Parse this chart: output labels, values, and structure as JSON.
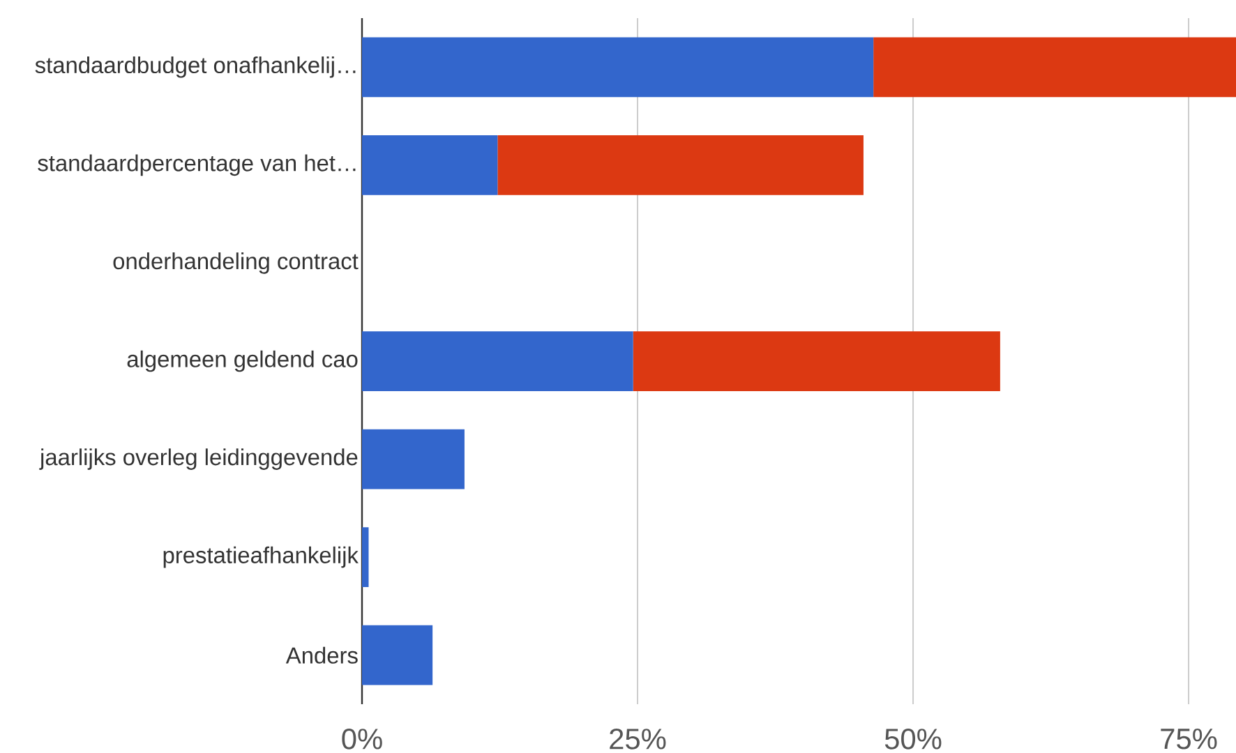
{
  "chart_data": {
    "type": "bar",
    "orientation": "horizontal",
    "stacked": true,
    "categories": [
      "standaardbudget onafhankelij…",
      "standaardpercentage van het…",
      "onderhandeling contract",
      "algemeen geldend cao",
      "jaarlijks overleg leidinggevende",
      "prestatieafhankelijk",
      "Anders"
    ],
    "series": [
      {
        "color": "#3366cc",
        "values": [
          46.4,
          12.3,
          0,
          24.6,
          9.3,
          0.6,
          6.4
        ]
      },
      {
        "color": "#dc3912",
        "values": [
          32.9,
          33.2,
          0,
          33.3,
          0,
          0,
          0
        ]
      }
    ],
    "xlim": [
      0,
      79.3
    ],
    "xticks": [
      {
        "value": 0,
        "label": "0%"
      },
      {
        "value": 25,
        "label": "25%"
      },
      {
        "value": 50,
        "label": "50%"
      },
      {
        "value": 75,
        "label": "75%"
      }
    ],
    "grid": "x"
  }
}
